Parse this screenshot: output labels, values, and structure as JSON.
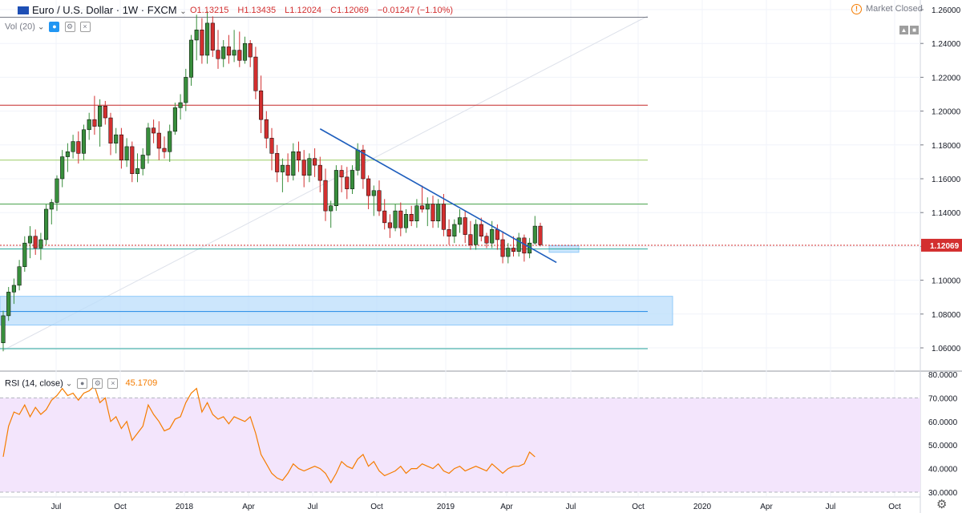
{
  "header": {
    "flag_icon": "eu-flag-icon",
    "symbol_title": "Euro / U.S. Dollar · 1W · FXCM",
    "open": "O1.13215",
    "high": "H1.13435",
    "low": "L1.12024",
    "close": "C1.12069",
    "change": "−0.01247 (−1.10%)",
    "ohlc_color": "#d32f2f"
  },
  "market_status": {
    "icon": "alert-circle-icon",
    "label": "Market Closed"
  },
  "volume": {
    "label": "Vol (20)",
    "icons": [
      "eye-icon",
      "settings-icon",
      "close-icon"
    ]
  },
  "rsi": {
    "label": "RSI (14, close)",
    "value": "45.1709",
    "icons": [
      "eye-icon",
      "settings-icon",
      "close-icon"
    ]
  },
  "chart_data": [
    {
      "type": "candlestick",
      "symbol": "EURUSD",
      "timeframe": "1W",
      "x_tick_labels": [
        "Jul",
        "Oct",
        "2018",
        "Apr",
        "Jul",
        "Oct",
        "2019",
        "Apr",
        "Jul",
        "Oct",
        "2020",
        "Apr",
        "Jul",
        "Oct"
      ],
      "y_tick_labels": [
        "1.06000",
        "1.08000",
        "1.10000",
        "1.12000",
        "1.14000",
        "1.16000",
        "1.18000",
        "1.20000",
        "1.22000",
        "1.24000",
        "1.26000"
      ],
      "ylim": [
        1.052,
        1.262
      ],
      "last_price": "1.12069",
      "colors": {
        "up": "#388e3c",
        "down": "#d32f2f"
      },
      "candles": [
        [
          1.063,
          1.082,
          1.058,
          1.079
        ],
        [
          1.079,
          1.096,
          1.076,
          1.093
        ],
        [
          1.093,
          1.101,
          1.086,
          1.097
        ],
        [
          1.097,
          1.112,
          1.094,
          1.108
        ],
        [
          1.108,
          1.126,
          1.105,
          1.122
        ],
        [
          1.122,
          1.132,
          1.113,
          1.126
        ],
        [
          1.126,
          1.13,
          1.115,
          1.119
        ],
        [
          1.119,
          1.128,
          1.112,
          1.124
        ],
        [
          1.124,
          1.145,
          1.121,
          1.142
        ],
        [
          1.142,
          1.148,
          1.133,
          1.146
        ],
        [
          1.146,
          1.162,
          1.141,
          1.16
        ],
        [
          1.16,
          1.177,
          1.155,
          1.173
        ],
        [
          1.173,
          1.181,
          1.164,
          1.176
        ],
        [
          1.176,
          1.186,
          1.172,
          1.182
        ],
        [
          1.182,
          1.188,
          1.169,
          1.175
        ],
        [
          1.175,
          1.192,
          1.171,
          1.189
        ],
        [
          1.189,
          1.199,
          1.183,
          1.195
        ],
        [
          1.195,
          1.209,
          1.186,
          1.191
        ],
        [
          1.191,
          1.207,
          1.179,
          1.203
        ],
        [
          1.203,
          1.206,
          1.192,
          1.196
        ],
        [
          1.196,
          1.199,
          1.174,
          1.181
        ],
        [
          1.181,
          1.19,
          1.175,
          1.186
        ],
        [
          1.186,
          1.19,
          1.166,
          1.171
        ],
        [
          1.171,
          1.184,
          1.167,
          1.179
        ],
        [
          1.179,
          1.182,
          1.158,
          1.163
        ],
        [
          1.163,
          1.175,
          1.158,
          1.166
        ],
        [
          1.166,
          1.178,
          1.162,
          1.174
        ],
        [
          1.174,
          1.193,
          1.169,
          1.19
        ],
        [
          1.19,
          1.195,
          1.181,
          1.187
        ],
        [
          1.187,
          1.194,
          1.171,
          1.178
        ],
        [
          1.178,
          1.185,
          1.172,
          1.176
        ],
        [
          1.176,
          1.192,
          1.17,
          1.188
        ],
        [
          1.188,
          1.205,
          1.186,
          1.202
        ],
        [
          1.202,
          1.21,
          1.195,
          1.205
        ],
        [
          1.205,
          1.225,
          1.2,
          1.22
        ],
        [
          1.22,
          1.245,
          1.215,
          1.242
        ],
        [
          1.242,
          1.257,
          1.23,
          1.248
        ],
        [
          1.248,
          1.255,
          1.228,
          1.233
        ],
        [
          1.233,
          1.259,
          1.228,
          1.252
        ],
        [
          1.252,
          1.256,
          1.232,
          1.236
        ],
        [
          1.236,
          1.248,
          1.225,
          1.231
        ],
        [
          1.231,
          1.242,
          1.226,
          1.238
        ],
        [
          1.238,
          1.245,
          1.228,
          1.233
        ],
        [
          1.233,
          1.248,
          1.229,
          1.236
        ],
        [
          1.236,
          1.247,
          1.226,
          1.23
        ],
        [
          1.23,
          1.244,
          1.228,
          1.24
        ],
        [
          1.24,
          1.242,
          1.226,
          1.232
        ],
        [
          1.232,
          1.238,
          1.207,
          1.212
        ],
        [
          1.212,
          1.221,
          1.187,
          1.195
        ],
        [
          1.195,
          1.2,
          1.178,
          1.184
        ],
        [
          1.184,
          1.19,
          1.165,
          1.175
        ],
        [
          1.175,
          1.18,
          1.158,
          1.164
        ],
        [
          1.164,
          1.172,
          1.152,
          1.168
        ],
        [
          1.168,
          1.175,
          1.158,
          1.162
        ],
        [
          1.162,
          1.181,
          1.159,
          1.176
        ],
        [
          1.176,
          1.182,
          1.164,
          1.171
        ],
        [
          1.171,
          1.177,
          1.155,
          1.162
        ],
        [
          1.162,
          1.175,
          1.158,
          1.172
        ],
        [
          1.172,
          1.178,
          1.161,
          1.168
        ],
        [
          1.168,
          1.173,
          1.152,
          1.159
        ],
        [
          1.159,
          1.166,
          1.135,
          1.141
        ],
        [
          1.141,
          1.147,
          1.131,
          1.144
        ],
        [
          1.144,
          1.168,
          1.141,
          1.165
        ],
        [
          1.165,
          1.168,
          1.152,
          1.161
        ],
        [
          1.161,
          1.167,
          1.148,
          1.154
        ],
        [
          1.154,
          1.168,
          1.151,
          1.165
        ],
        [
          1.165,
          1.181,
          1.162,
          1.177
        ],
        [
          1.177,
          1.18,
          1.154,
          1.16
        ],
        [
          1.16,
          1.162,
          1.142,
          1.15
        ],
        [
          1.15,
          1.156,
          1.138,
          1.153
        ],
        [
          1.153,
          1.159,
          1.138,
          1.141
        ],
        [
          1.141,
          1.148,
          1.13,
          1.134
        ],
        [
          1.134,
          1.139,
          1.125,
          1.131
        ],
        [
          1.131,
          1.145,
          1.129,
          1.141
        ],
        [
          1.141,
          1.146,
          1.126,
          1.131
        ],
        [
          1.131,
          1.142,
          1.128,
          1.139
        ],
        [
          1.139,
          1.144,
          1.132,
          1.135
        ],
        [
          1.135,
          1.148,
          1.131,
          1.144
        ],
        [
          1.144,
          1.156,
          1.14,
          1.142
        ],
        [
          1.142,
          1.149,
          1.132,
          1.145
        ],
        [
          1.145,
          1.15,
          1.131,
          1.135
        ],
        [
          1.135,
          1.148,
          1.131,
          1.145
        ],
        [
          1.145,
          1.151,
          1.126,
          1.13
        ],
        [
          1.13,
          1.136,
          1.121,
          1.126
        ],
        [
          1.126,
          1.136,
          1.122,
          1.133
        ],
        [
          1.133,
          1.142,
          1.128,
          1.137
        ],
        [
          1.137,
          1.141,
          1.122,
          1.127
        ],
        [
          1.127,
          1.135,
          1.118,
          1.121
        ],
        [
          1.121,
          1.136,
          1.118,
          1.133
        ],
        [
          1.133,
          1.137,
          1.123,
          1.126
        ],
        [
          1.126,
          1.128,
          1.119,
          1.122
        ],
        [
          1.122,
          1.135,
          1.119,
          1.13
        ],
        [
          1.13,
          1.133,
          1.118,
          1.124
        ],
        [
          1.124,
          1.129,
          1.11,
          1.114
        ],
        [
          1.114,
          1.122,
          1.11,
          1.119
        ],
        [
          1.119,
          1.126,
          1.114,
          1.117
        ],
        [
          1.117,
          1.128,
          1.114,
          1.125
        ],
        [
          1.125,
          1.127,
          1.111,
          1.116
        ],
        [
          1.116,
          1.125,
          1.113,
          1.122
        ],
        [
          1.122,
          1.138,
          1.121,
          1.132
        ],
        [
          1.132,
          1.134,
          1.12,
          1.121
        ]
      ],
      "horizontal_levels": [
        {
          "price": 1.2555,
          "color": "#787b86"
        },
        {
          "price": 1.2035,
          "color": "#c62828"
        },
        {
          "price": 1.171,
          "color": "#9ccc65"
        },
        {
          "price": 1.145,
          "color": "#43a047"
        },
        {
          "price": 1.1185,
          "color": "#26a69a"
        },
        {
          "price": 1.0815,
          "color": "#1e88e5"
        },
        {
          "price": 1.0595,
          "color": "#26a69a"
        }
      ],
      "zones": [
        {
          "from": 1.0735,
          "to": 1.0905,
          "color": "#bbdefb"
        },
        {
          "from": 1.1165,
          "to": 1.1205,
          "color": "#bbdefb"
        }
      ],
      "trendline": {
        "from_candle": 59,
        "from_price": 1.1895,
        "to_candle": 103,
        "to_price": 1.1105,
        "color": "#1e5ebd"
      }
    },
    {
      "type": "line",
      "name": "RSI (14, close)",
      "ylim": [
        30,
        80
      ],
      "y_tick_labels": [
        "30.0000",
        "40.0000",
        "50.0000",
        "60.0000",
        "70.0000",
        "80.0000"
      ],
      "band": [
        30,
        70
      ],
      "band_color": "#f3e5fc",
      "line_color": "#f57c00",
      "values": [
        45,
        58,
        64,
        63,
        67,
        62,
        66,
        63,
        65,
        69,
        71,
        74,
        71,
        72,
        69,
        72,
        73,
        75,
        68,
        70,
        60,
        62,
        57,
        60,
        52,
        55,
        58,
        67,
        63,
        60,
        56,
        57,
        61,
        62,
        68,
        72,
        74,
        64,
        68,
        63,
        61,
        62,
        59,
        62,
        61,
        60,
        62,
        55,
        46,
        42,
        38,
        36,
        35,
        38,
        42,
        40,
        39,
        40,
        41,
        40,
        38,
        34,
        38,
        43,
        41,
        40,
        44,
        46,
        41,
        43,
        39,
        37,
        38,
        39,
        41,
        38,
        40,
        40,
        42,
        41,
        40,
        42,
        39,
        38,
        40,
        41,
        39,
        40,
        41,
        40,
        39,
        42,
        40,
        38,
        40,
        41,
        41,
        42,
        47,
        45
      ],
      "last_value": "45.1709"
    }
  ]
}
